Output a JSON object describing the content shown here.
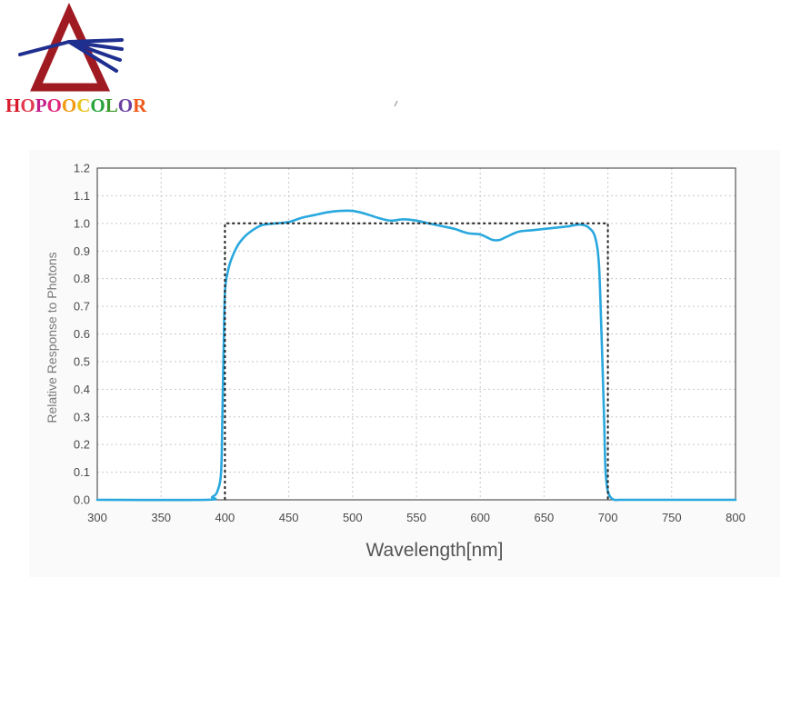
{
  "logo": {
    "letters": [
      "H",
      "O",
      "P",
      "O",
      "O",
      "C",
      "O",
      "L",
      "O",
      "R"
    ],
    "letter_colors": [
      "#d81b2a",
      "#e23a4e",
      "#c21f8a",
      "#e0267d",
      "#f29a12",
      "#e8c21a",
      "#26a33c",
      "#3c9a2e",
      "#6b3fa0",
      "#ef5a1a"
    ],
    "triangle_color": "#a01a22",
    "rays_color": "#1f2f8f",
    "icon": "prism-logo-icon"
  },
  "chart_data": {
    "type": "line",
    "title": "",
    "xlabel": "Wavelength[nm]",
    "ylabel": "Relative Response to Photons",
    "xlim": [
      300,
      800
    ],
    "ylim": [
      0,
      1.2
    ],
    "xticks": [
      300,
      350,
      400,
      450,
      500,
      550,
      600,
      650,
      700,
      750,
      800
    ],
    "yticks": [
      0.0,
      0.1,
      0.2,
      0.3,
      0.4,
      0.5,
      0.6,
      0.7,
      0.8,
      0.9,
      1.0,
      1.1,
      1.2
    ],
    "ytick_labels": [
      "0.0",
      "0.1",
      "0.2",
      "0.3",
      "0.4",
      "0.5",
      "0.6",
      "0.7",
      "0.8",
      "0.9",
      "1.0",
      "1.1",
      "1.2"
    ],
    "grid": true,
    "series": [
      {
        "style": "solid",
        "color": "#29a8de",
        "x": [
          300,
          385,
          390,
          394,
          397,
          398,
          399,
          400,
          402,
          405,
          410,
          415,
          420,
          425,
          430,
          440,
          450,
          460,
          470,
          480,
          490,
          500,
          510,
          520,
          530,
          540,
          550,
          560,
          570,
          580,
          590,
          600,
          605,
          610,
          615,
          620,
          630,
          640,
          650,
          660,
          670,
          675,
          680,
          685,
          690,
          693,
          695,
          697,
          698,
          699,
          700,
          702,
          705,
          710,
          720,
          800
        ],
        "y": [
          0,
          0,
          0.01,
          0.03,
          0.1,
          0.3,
          0.55,
          0.75,
          0.82,
          0.87,
          0.92,
          0.95,
          0.97,
          0.985,
          0.995,
          1.0,
          1.005,
          1.02,
          1.03,
          1.04,
          1.045,
          1.045,
          1.035,
          1.02,
          1.01,
          1.015,
          1.01,
          1.0,
          0.99,
          0.98,
          0.965,
          0.96,
          0.95,
          0.94,
          0.94,
          0.95,
          0.97,
          0.975,
          0.98,
          0.985,
          0.99,
          0.995,
          0.995,
          0.985,
          0.95,
          0.85,
          0.6,
          0.3,
          0.12,
          0.06,
          0.03,
          0.01,
          0,
          0,
          0,
          0
        ]
      },
      {
        "style": "dotted",
        "color": "#222222",
        "x": [
          400,
          400,
          700,
          700
        ],
        "y": [
          0,
          1.0,
          1.0,
          0
        ]
      }
    ]
  }
}
